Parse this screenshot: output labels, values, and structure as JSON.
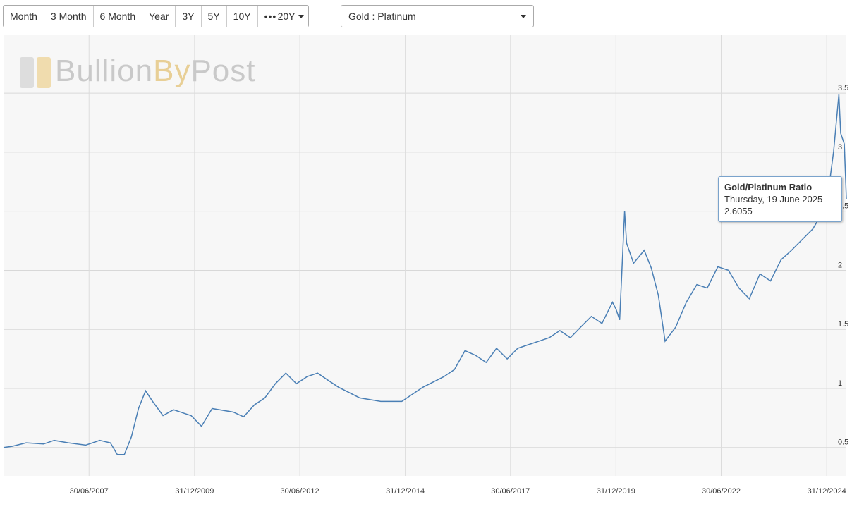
{
  "toolbar": {
    "buttons": [
      "Month",
      "3 Month",
      "6 Month",
      "Year",
      "3Y",
      "5Y",
      "10Y",
      "20Y"
    ],
    "dropdown": "Gold : Platinum"
  },
  "logo": [
    "Bullion",
    "By",
    "Post"
  ],
  "tooltip": {
    "date": "Thursday, 19 June 2025"
  },
  "chart_data": {
    "type": "line",
    "x": [
      "19/06/2005",
      "01/09/2005",
      "01/01/2006",
      "01/06/2006",
      "01/09/2006",
      "01/01/2007",
      "01/06/2007",
      "01/10/2007",
      "01/01/2008",
      "01/03/2008",
      "01/05/2008",
      "01/07/2008",
      "01/09/2008",
      "01/11/2008",
      "01/01/2009",
      "01/04/2009",
      "01/07/2009",
      "01/12/2009",
      "01/03/2010",
      "01/06/2010",
      "01/12/2010",
      "01/03/2011",
      "01/06/2011",
      "01/09/2011",
      "01/12/2011",
      "01/03/2012",
      "01/06/2012",
      "01/09/2012",
      "01/12/2012",
      "01/03/2013",
      "01/06/2013",
      "01/12/2013",
      "01/06/2014",
      "01/12/2014",
      "01/06/2015",
      "01/12/2015",
      "01/03/2016",
      "01/06/2016",
      "01/09/2016",
      "01/12/2016",
      "01/03/2017",
      "01/06/2017",
      "01/09/2017",
      "01/12/2017",
      "01/06/2018",
      "01/09/2018",
      "01/12/2018",
      "01/03/2019",
      "01/06/2019",
      "01/09/2019",
      "01/12/2019",
      "01/01/2020",
      "01/02/2020",
      "15/03/2020",
      "01/04/2020",
      "01/06/2020",
      "01/09/2020",
      "01/11/2020",
      "01/01/2021",
      "01/03/2021",
      "01/06/2021",
      "01/09/2021",
      "01/12/2021",
      "01/03/2022",
      "01/06/2022",
      "01/09/2022",
      "01/12/2022",
      "01/03/2023",
      "01/06/2023",
      "01/09/2023",
      "01/12/2023",
      "01/03/2024",
      "01/06/2024",
      "01/09/2024",
      "01/12/2024",
      "01/02/2025",
      "01/03/2025",
      "15/04/2025",
      "01/05/2025",
      "01/06/2025",
      "19/06/2025"
    ],
    "series": [
      {
        "name": "Gold/Platinum Ratio",
        "color": "#4a7fb5",
        "values": [
          0.5,
          0.51,
          0.54,
          0.53,
          0.56,
          0.54,
          0.52,
          0.56,
          0.54,
          0.44,
          0.44,
          0.59,
          0.83,
          0.98,
          0.89,
          0.77,
          0.82,
          0.77,
          0.68,
          0.83,
          0.8,
          0.76,
          0.86,
          0.92,
          1.04,
          1.13,
          1.04,
          1.1,
          1.13,
          1.07,
          1.01,
          0.92,
          0.89,
          0.89,
          1.01,
          1.1,
          1.16,
          1.32,
          1.28,
          1.22,
          1.34,
          1.25,
          1.34,
          1.37,
          1.43,
          1.49,
          1.43,
          1.52,
          1.61,
          1.55,
          1.73,
          1.67,
          1.58,
          2.5,
          2.23,
          2.06,
          2.17,
          2.02,
          1.79,
          1.4,
          1.52,
          1.73,
          1.88,
          1.85,
          2.03,
          2.0,
          1.85,
          1.76,
          1.97,
          1.91,
          2.09,
          2.17,
          2.26,
          2.35,
          2.5,
          2.8,
          3.01,
          3.49,
          3.16,
          3.07,
          2.6055
        ]
      }
    ],
    "xlim": [
      "19/06/2005",
      "19/06/2025"
    ],
    "xticks": [
      "30/06/2007",
      "31/12/2009",
      "30/06/2012",
      "31/12/2014",
      "30/06/2017",
      "31/12/2019",
      "30/06/2022",
      "31/12/2024"
    ],
    "ylim": [
      0.26,
      3.99
    ],
    "yticks": [
      0.5,
      1,
      1.5,
      2,
      2.5,
      3,
      3.5
    ],
    "grid": true
  }
}
